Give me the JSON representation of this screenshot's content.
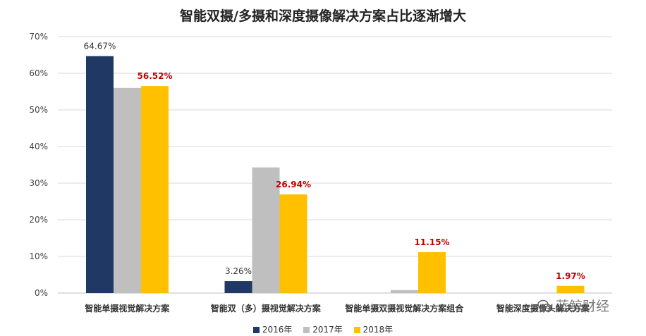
{
  "colors": {
    "s2016": "#1f3864",
    "s2017": "#bfbfbf",
    "s2018": "#ffc000",
    "highlight_label": "#c00000"
  },
  "chart_data": {
    "type": "bar",
    "title": "智能双摄/多摄和深度摄像解决方案占比逐渐增大",
    "categories": [
      "智能单摄视觉解决方案",
      "智能双（多）摄视觉解决方案",
      "智能单摄双摄视觉解决方案组合",
      "智能深度摄像头解决方案"
    ],
    "series": [
      {
        "name": "2016年",
        "values": [
          64.67,
          3.26,
          0,
          0
        ]
      },
      {
        "name": "2017年",
        "values": [
          56.0,
          34.3,
          0.8,
          0
        ]
      },
      {
        "name": "2018年",
        "values": [
          56.52,
          26.94,
          11.15,
          1.97
        ]
      }
    ],
    "data_labels": [
      {
        "series": 0,
        "category": 0,
        "text": "64.67%",
        "highlight": false
      },
      {
        "series": 2,
        "category": 0,
        "text": "56.52%",
        "highlight": true
      },
      {
        "series": 0,
        "category": 1,
        "text": "3.26%",
        "highlight": false
      },
      {
        "series": 2,
        "category": 1,
        "text": "26.94%",
        "highlight": true
      },
      {
        "series": 2,
        "category": 2,
        "text": "11.15%",
        "highlight": true
      },
      {
        "series": 2,
        "category": 3,
        "text": "1.97%",
        "highlight": true
      }
    ],
    "y_ticks": [
      "0%",
      "10%",
      "20%",
      "30%",
      "40%",
      "50%",
      "60%",
      "70%"
    ],
    "ylim": [
      0,
      70
    ],
    "grid": true,
    "legend_position": "bottom"
  },
  "watermark": {
    "text": "蓝鲸财经",
    "icon": "wechat-icon"
  }
}
